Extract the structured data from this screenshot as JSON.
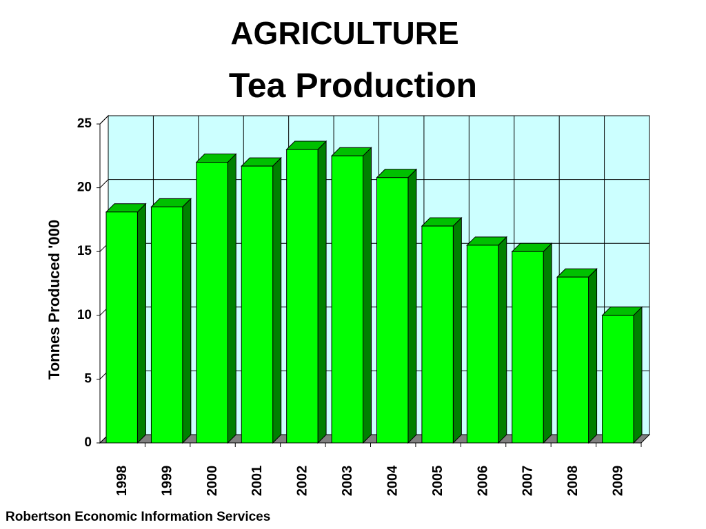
{
  "chart_data": {
    "type": "bar3d",
    "title": "AGRICULTURE",
    "subtitle": "Tea Production",
    "y_label": "Tonnes Produced '000",
    "source": "Robertson Economic Information Services",
    "categories": [
      "1998",
      "1999",
      "2000",
      "2001",
      "2002",
      "2003",
      "2004",
      "2005",
      "2006",
      "2007",
      "2008",
      "2009"
    ],
    "values": [
      18.1,
      18.5,
      22,
      21.7,
      23,
      22.5,
      20.8,
      17,
      15.5,
      15,
      13,
      10
    ],
    "color": "#00ff00",
    "ylim": [
      0,
      25
    ],
    "yticks": [
      0,
      5,
      10,
      15,
      20,
      25
    ],
    "grid": true
  }
}
